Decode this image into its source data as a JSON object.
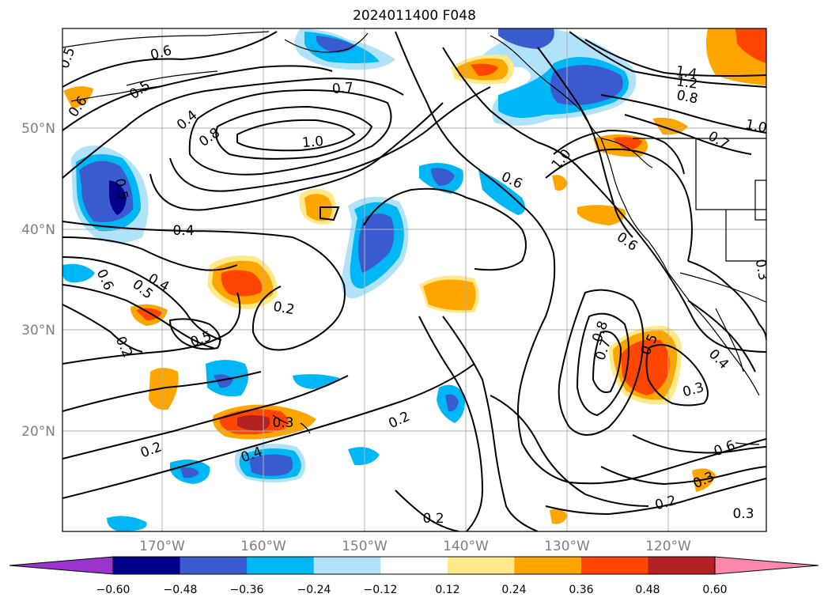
{
  "figure": {
    "title": "2024011400 F048"
  },
  "map": {
    "lat_labels": [
      "50°N",
      "40°N",
      "30°N",
      "20°N"
    ],
    "lon_labels": [
      "170°W",
      "160°W",
      "150°W",
      "140°W",
      "130°W",
      "120°W"
    ],
    "grid": true
  },
  "colorbar": {
    "ticks": [
      "−0.60",
      "−0.48",
      "−0.36",
      "−0.24",
      "−0.12",
      "0.12",
      "0.24",
      "0.36",
      "0.48",
      "0.60"
    ],
    "colors": [
      "#9a34cd",
      "#00008b",
      "#3a5bd0",
      "#00b7f5",
      "#b0e2fa",
      "#ffffff",
      "#ffe98a",
      "#ffa500",
      "#ff4500",
      "#b22222",
      "#ff87ab"
    ],
    "extend": "both"
  },
  "contour_labels": [
    "0.5",
    "0.6",
    "0.6",
    "0.5",
    "0.4",
    "0.7",
    "0.8",
    "1.0",
    "1.4",
    "1.2",
    "0.8",
    "1.0",
    "0.7",
    "0.5",
    "0.4",
    "1.0",
    "0.6",
    "0.6",
    "0.3",
    "0.6",
    "0.4",
    "0.5",
    "0.2",
    "0.2",
    "0.5",
    "0.8",
    "0.7",
    "0.5",
    "0.4",
    "0.3",
    "0.3",
    "0.2",
    "0.2",
    "0.4",
    "0.2",
    "0.6",
    "0.3",
    "0.2",
    "0.3"
  ]
}
